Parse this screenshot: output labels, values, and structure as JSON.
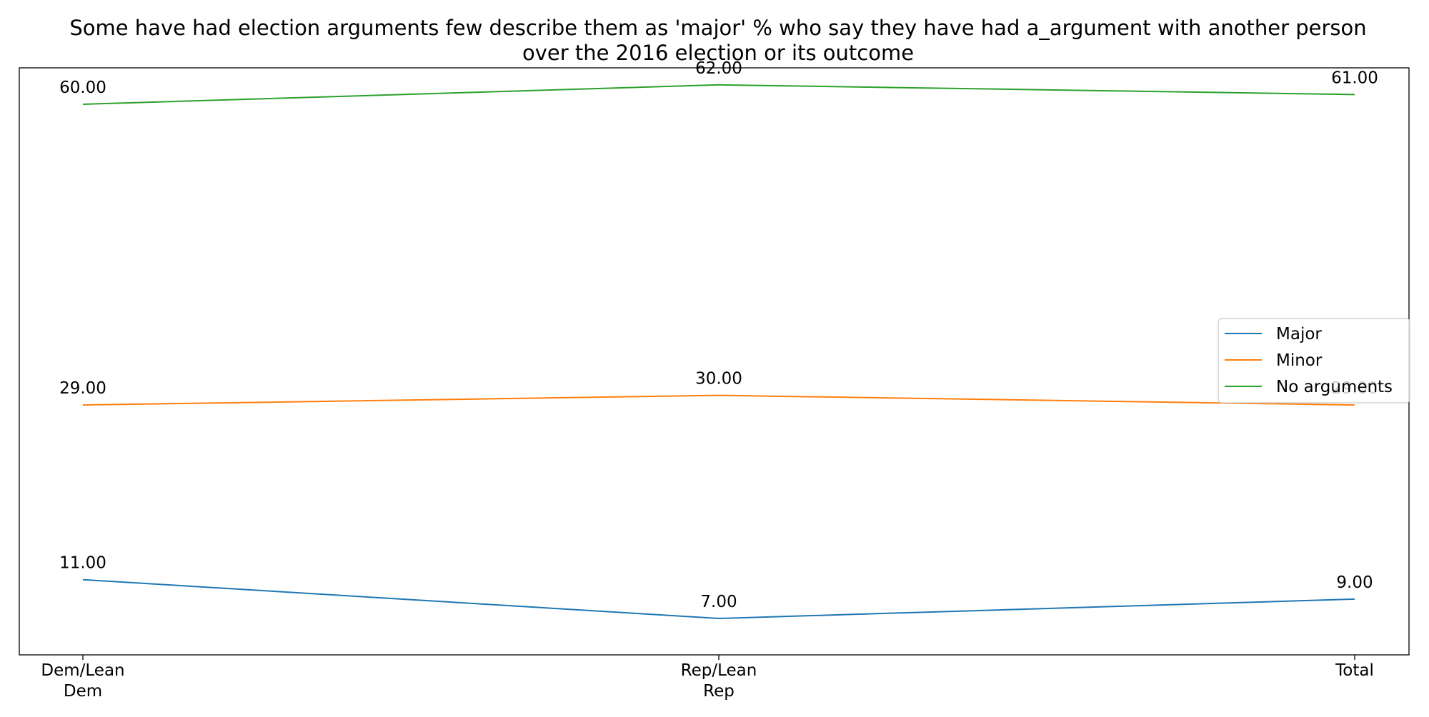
{
  "chart_data": {
    "type": "line",
    "title_lines": [
      "Some have had election arguments few describe them as 'major' % who say they have had a_argument with another person",
      "over the 2016 election or its outcome"
    ],
    "categories": [
      [
        "Dem/Lean",
        "Dem"
      ],
      [
        "Rep/Lean",
        "Rep"
      ],
      [
        "Total"
      ]
    ],
    "series": [
      {
        "name": "Major",
        "color": "#1f77b4",
        "values": [
          11,
          7,
          9
        ],
        "labels": [
          "11.00",
          "7.00",
          "9.00"
        ]
      },
      {
        "name": "Minor",
        "color": "#ff7f0e",
        "values": [
          29,
          30,
          29
        ],
        "labels": [
          "29.00",
          "30.00",
          "29.00"
        ]
      },
      {
        "name": "No arguments",
        "color": "#2ca02c",
        "values": [
          60,
          62,
          61
        ],
        "labels": [
          "60.00",
          "62.00",
          "61.00"
        ]
      }
    ],
    "ylim": [
      3.25,
      63.75
    ],
    "xlabel": "",
    "ylabel": "",
    "y_axis_visible": false,
    "grid": false,
    "legend_position": "center-right"
  }
}
